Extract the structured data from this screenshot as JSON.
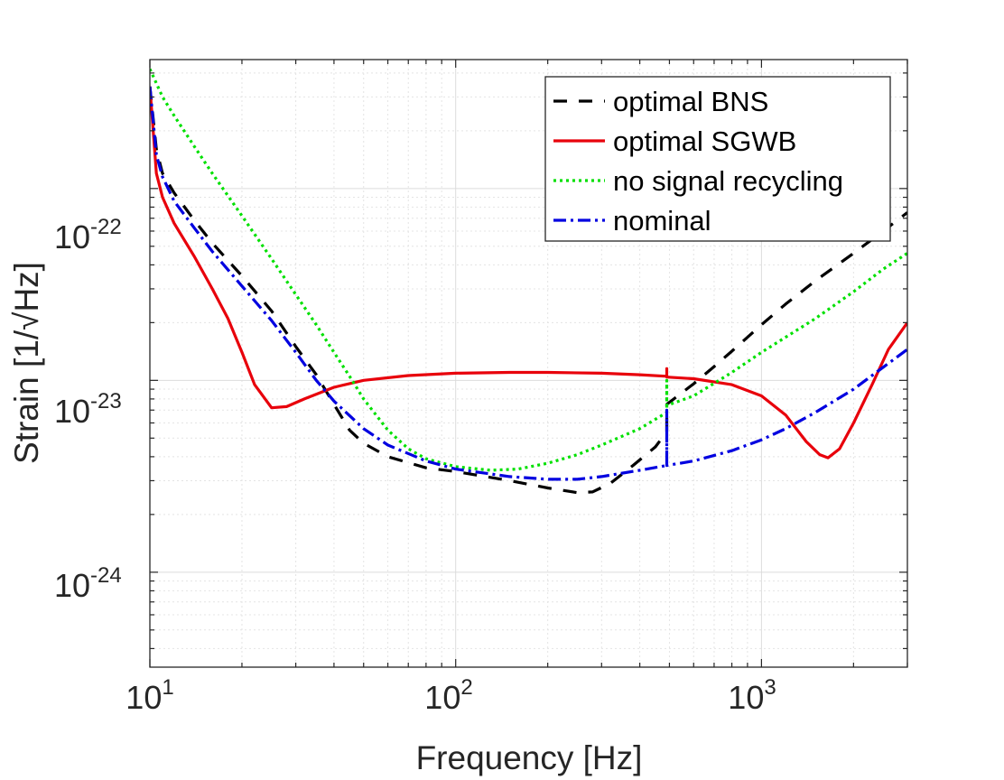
{
  "chart_data": {
    "type": "line",
    "xlabel": "Frequency [Hz]",
    "ylabel": "Strain [1/√Hz]",
    "xscale": "log",
    "yscale": "log",
    "xlim": [
      10,
      3000
    ],
    "ylim": [
      3.2e-25,
      4.7e-22
    ],
    "grid": true,
    "minor_grid": true,
    "legend_position": "top-right",
    "x_ticks": [
      {
        "base": "10",
        "exp": "1",
        "value": 10
      },
      {
        "base": "10",
        "exp": "2",
        "value": 100
      },
      {
        "base": "10",
        "exp": "3",
        "value": 1000
      }
    ],
    "y_ticks": [
      {
        "base": "10",
        "exp": "-22",
        "value": 1e-22
      },
      {
        "base": "10",
        "exp": "-23",
        "value": 1e-23
      },
      {
        "base": "10",
        "exp": "-24",
        "value": 1e-24
      }
    ],
    "series": [
      {
        "name": "optimal BNS",
        "color": "#000000",
        "style": "dashed",
        "points": [
          [
            10,
            3.4e-22
          ],
          [
            10.5,
            1.6e-22
          ],
          [
            11,
            1.2e-22
          ],
          [
            12,
            9.5e-23
          ],
          [
            14,
            6.8e-23
          ],
          [
            16,
            5.2e-23
          ],
          [
            20,
            3.5e-23
          ],
          [
            25,
            2.3e-23
          ],
          [
            30,
            1.5e-23
          ],
          [
            35,
            1.07e-23
          ],
          [
            40,
            7.5e-24
          ],
          [
            45,
            5.5e-24
          ],
          [
            50,
            4.7e-24
          ],
          [
            60,
            4e-24
          ],
          [
            80,
            3.5e-24
          ],
          [
            100,
            3.35e-24
          ],
          [
            150,
            3e-24
          ],
          [
            200,
            2.75e-24
          ],
          [
            250,
            2.6e-24
          ],
          [
            280,
            2.62e-24
          ],
          [
            320,
            2.9e-24
          ],
          [
            380,
            3.6e-24
          ],
          [
            450,
            4.5e-24
          ],
          [
            490,
            5.4e-24
          ],
          [
            490,
            7.5e-24
          ],
          [
            600,
            9.6e-24
          ],
          [
            700,
            1.18e-23
          ],
          [
            800,
            1.42e-23
          ],
          [
            1000,
            1.95e-23
          ],
          [
            1200,
            2.5e-23
          ],
          [
            1500,
            3.3e-23
          ],
          [
            2000,
            4.6e-23
          ],
          [
            2500,
            6e-23
          ],
          [
            3000,
            7.5e-23
          ]
        ]
      },
      {
        "name": "optimal SGWB",
        "color": "#e8000b",
        "style": "solid",
        "points": [
          [
            10,
            3.4e-22
          ],
          [
            10.5,
            1.2e-22
          ],
          [
            11,
            9e-23
          ],
          [
            12,
            6.6e-23
          ],
          [
            14,
            4.4e-23
          ],
          [
            16,
            3e-23
          ],
          [
            18,
            2.1e-23
          ],
          [
            20,
            1.4e-23
          ],
          [
            22,
            9.5e-24
          ],
          [
            25,
            7.2e-24
          ],
          [
            28,
            7.3e-24
          ],
          [
            32,
            8e-24
          ],
          [
            40,
            9.2e-24
          ],
          [
            50,
            1e-23
          ],
          [
            70,
            1.06e-23
          ],
          [
            100,
            1.09e-23
          ],
          [
            150,
            1.1e-23
          ],
          [
            200,
            1.1e-23
          ],
          [
            300,
            1.09e-23
          ],
          [
            400,
            1.07e-23
          ],
          [
            490,
            1.05e-23
          ],
          [
            490,
            1.15e-23
          ],
          [
            490,
            1.04e-23
          ],
          [
            600,
            1.02e-23
          ],
          [
            800,
            9.5e-24
          ],
          [
            1000,
            8.3e-24
          ],
          [
            1200,
            6.6e-24
          ],
          [
            1400,
            4.8e-24
          ],
          [
            1550,
            4.1e-24
          ],
          [
            1650,
            3.95e-24
          ],
          [
            1800,
            4.4e-24
          ],
          [
            2000,
            6e-24
          ],
          [
            2300,
            9.5e-24
          ],
          [
            2600,
            1.45e-23
          ],
          [
            3000,
            2e-23
          ]
        ]
      },
      {
        "name": "no signal recycling",
        "color": "#00e000",
        "style": "dotted",
        "points": [
          [
            10,
            4.2e-22
          ],
          [
            11,
            3e-22
          ],
          [
            12,
            2.4e-22
          ],
          [
            14,
            1.65e-22
          ],
          [
            16,
            1.2e-22
          ],
          [
            20,
            7.2e-23
          ],
          [
            25,
            4.3e-23
          ],
          [
            30,
            2.8e-23
          ],
          [
            35,
            1.95e-23
          ],
          [
            40,
            1.4e-23
          ],
          [
            45,
            1.05e-23
          ],
          [
            50,
            8e-24
          ],
          [
            60,
            5.5e-24
          ],
          [
            70,
            4.4e-24
          ],
          [
            80,
            3.9e-24
          ],
          [
            100,
            3.55e-24
          ],
          [
            130,
            3.4e-24
          ],
          [
            160,
            3.45e-24
          ],
          [
            200,
            3.7e-24
          ],
          [
            250,
            4.1e-24
          ],
          [
            300,
            4.6e-24
          ],
          [
            400,
            5.6e-24
          ],
          [
            490,
            6.8e-24
          ],
          [
            490,
            1e-23
          ],
          [
            490,
            7.4e-24
          ],
          [
            600,
            8.3e-24
          ],
          [
            800,
            1.1e-23
          ],
          [
            1000,
            1.4e-23
          ],
          [
            1500,
            2.1e-23
          ],
          [
            2000,
            2.9e-23
          ],
          [
            2500,
            3.8e-23
          ],
          [
            3000,
            4.6e-23
          ]
        ]
      },
      {
        "name": "nominal",
        "color": "#0000e0",
        "style": "dashdot",
        "points": [
          [
            10,
            3.4e-22
          ],
          [
            10.5,
            1.5e-22
          ],
          [
            11,
            1.15e-22
          ],
          [
            12,
            8.6e-23
          ],
          [
            14,
            6.2e-23
          ],
          [
            16,
            4.7e-23
          ],
          [
            20,
            3.1e-23
          ],
          [
            25,
            2.05e-23
          ],
          [
            30,
            1.4e-23
          ],
          [
            35,
            1e-23
          ],
          [
            40,
            7.8e-24
          ],
          [
            50,
            5.6e-24
          ],
          [
            60,
            4.6e-24
          ],
          [
            80,
            3.8e-24
          ],
          [
            100,
            3.45e-24
          ],
          [
            150,
            3.15e-24
          ],
          [
            200,
            3.05e-24
          ],
          [
            250,
            3.05e-24
          ],
          [
            300,
            3.15e-24
          ],
          [
            400,
            3.4e-24
          ],
          [
            490,
            3.6e-24
          ],
          [
            490,
            7e-24
          ],
          [
            490,
            3.6e-24
          ],
          [
            600,
            3.8e-24
          ],
          [
            800,
            4.3e-24
          ],
          [
            1000,
            4.9e-24
          ],
          [
            1200,
            5.6e-24
          ],
          [
            1500,
            6.8e-24
          ],
          [
            2000,
            9e-24
          ],
          [
            2500,
            1.17e-23
          ],
          [
            3000,
            1.45e-23
          ]
        ]
      }
    ]
  }
}
